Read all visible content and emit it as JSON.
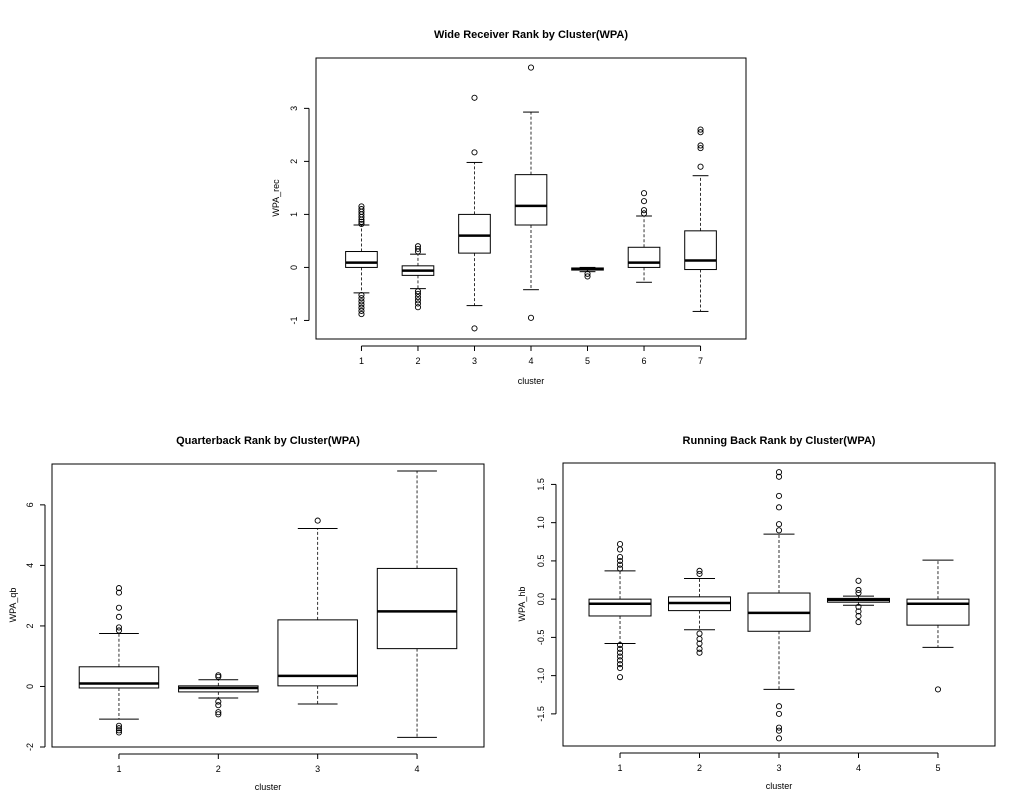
{
  "chart_data": [
    {
      "type": "box",
      "title": "Wide Receiver Rank by Cluster(WPA)",
      "xlabel": "cluster",
      "ylabel": "WPA_rec",
      "ylim": [
        -1.35,
        3.95
      ],
      "yticks": [
        -1,
        0,
        1,
        2,
        3
      ],
      "categories": [
        "1",
        "2",
        "3",
        "4",
        "5",
        "6",
        "7"
      ],
      "boxes": [
        {
          "cluster": "1",
          "lower_whisker": -0.48,
          "q1": 0.0,
          "median": 0.09,
          "q3": 0.3,
          "upper_whisker": 0.8,
          "outliers": [
            0.82,
            0.86,
            0.9,
            0.95,
            1.0,
            1.05,
            1.1,
            1.15,
            -0.52,
            -0.58,
            -0.64,
            -0.7,
            -0.76,
            -0.82,
            -0.88
          ]
        },
        {
          "cluster": "2",
          "lower_whisker": -0.4,
          "q1": -0.15,
          "median": -0.06,
          "q3": 0.03,
          "upper_whisker": 0.25,
          "outliers": [
            0.3,
            0.35,
            0.4,
            -0.45,
            -0.5,
            -0.56,
            -0.62,
            -0.68,
            -0.75
          ]
        },
        {
          "cluster": "3",
          "lower_whisker": -0.72,
          "q1": 0.27,
          "median": 0.6,
          "q3": 1.0,
          "upper_whisker": 1.98,
          "outliers": [
            2.17,
            3.2,
            -1.15
          ]
        },
        {
          "cluster": "4",
          "lower_whisker": -0.42,
          "q1": 0.8,
          "median": 1.16,
          "q3": 1.75,
          "upper_whisker": 2.93,
          "outliers": [
            3.77,
            -0.95
          ]
        },
        {
          "cluster": "5",
          "lower_whisker": -0.08,
          "q1": -0.05,
          "median": -0.03,
          "q3": -0.01,
          "upper_whisker": 0.0,
          "outliers": [
            -0.12,
            -0.17
          ]
        },
        {
          "cluster": "6",
          "lower_whisker": -0.28,
          "q1": 0.0,
          "median": 0.09,
          "q3": 0.38,
          "upper_whisker": 0.97,
          "outliers": [
            1.02,
            1.08,
            1.25,
            1.4
          ]
        },
        {
          "cluster": "7",
          "lower_whisker": -0.83,
          "q1": -0.04,
          "median": 0.13,
          "q3": 0.69,
          "upper_whisker": 1.73,
          "outliers": [
            1.9,
            2.25,
            2.3,
            2.55,
            2.6
          ]
        }
      ]
    },
    {
      "type": "box",
      "title": "Quarterback Rank by Cluster(WPA)",
      "xlabel": "cluster",
      "ylabel": "WPA_qb",
      "ylim": [
        -2.0,
        7.35
      ],
      "yticks": [
        -2,
        0,
        2,
        4,
        6
      ],
      "categories": [
        "1",
        "2",
        "3",
        "4"
      ],
      "boxes": [
        {
          "cluster": "1",
          "lower_whisker": -1.08,
          "q1": -0.05,
          "median": 0.1,
          "q3": 0.65,
          "upper_whisker": 1.75,
          "outliers": [
            1.85,
            1.95,
            2.3,
            2.6,
            3.1,
            3.25,
            -1.3,
            -1.38,
            -1.45,
            -1.52
          ]
        },
        {
          "cluster": "2",
          "lower_whisker": -0.38,
          "q1": -0.18,
          "median": -0.05,
          "q3": 0.02,
          "upper_whisker": 0.22,
          "outliers": [
            0.32,
            0.37,
            -0.5,
            -0.62,
            -0.85,
            -0.92
          ]
        },
        {
          "cluster": "3",
          "lower_whisker": -0.58,
          "q1": 0.02,
          "median": 0.35,
          "q3": 2.2,
          "upper_whisker": 5.22,
          "outliers": [
            5.48
          ]
        },
        {
          "cluster": "4",
          "lower_whisker": -1.68,
          "q1": 1.25,
          "median": 2.48,
          "q3": 3.9,
          "upper_whisker": 7.12,
          "outliers": []
        }
      ]
    },
    {
      "type": "box",
      "title": "Running Back Rank by Cluster(WPA)",
      "xlabel": "cluster",
      "ylabel": "WPA_hb",
      "ylim": [
        -1.92,
        1.78
      ],
      "yticks": [
        -1.5,
        -1.0,
        -0.5,
        0.0,
        0.5,
        1.0,
        1.5
      ],
      "ytick_labels": [
        "-1.5",
        "-1.0",
        "-0.5",
        "0.0",
        "0.5",
        "1.0",
        "1.5"
      ],
      "categories": [
        "1",
        "2",
        "3",
        "4",
        "5"
      ],
      "boxes": [
        {
          "cluster": "1",
          "lower_whisker": -0.58,
          "q1": -0.22,
          "median": -0.06,
          "q3": 0.0,
          "upper_whisker": 0.37,
          "outliers": [
            0.4,
            0.45,
            0.5,
            0.55,
            0.65,
            0.72,
            -0.6,
            -0.65,
            -0.7,
            -0.75,
            -0.8,
            -0.85,
            -0.9,
            -1.02
          ]
        },
        {
          "cluster": "2",
          "lower_whisker": -0.4,
          "q1": -0.15,
          "median": -0.05,
          "q3": 0.03,
          "upper_whisker": 0.27,
          "outliers": [
            0.33,
            0.37,
            -0.45,
            -0.52,
            -0.58,
            -0.65,
            -0.7
          ]
        },
        {
          "cluster": "3",
          "lower_whisker": -1.18,
          "q1": -0.42,
          "median": -0.18,
          "q3": 0.08,
          "upper_whisker": 0.85,
          "outliers": [
            0.9,
            0.98,
            1.2,
            1.35,
            1.6,
            1.66,
            -1.4,
            -1.5,
            -1.68,
            -1.72,
            -1.82
          ]
        },
        {
          "cluster": "4",
          "lower_whisker": -0.08,
          "q1": -0.04,
          "median": -0.01,
          "q3": 0.01,
          "upper_whisker": 0.04,
          "outliers": [
            0.08,
            0.12,
            0.24,
            -0.1,
            -0.16,
            -0.22,
            -0.3
          ]
        },
        {
          "cluster": "5",
          "lower_whisker": -0.63,
          "q1": -0.34,
          "median": -0.06,
          "q3": 0.0,
          "upper_whisker": 0.51,
          "outliers": [
            -1.18
          ]
        }
      ]
    }
  ]
}
